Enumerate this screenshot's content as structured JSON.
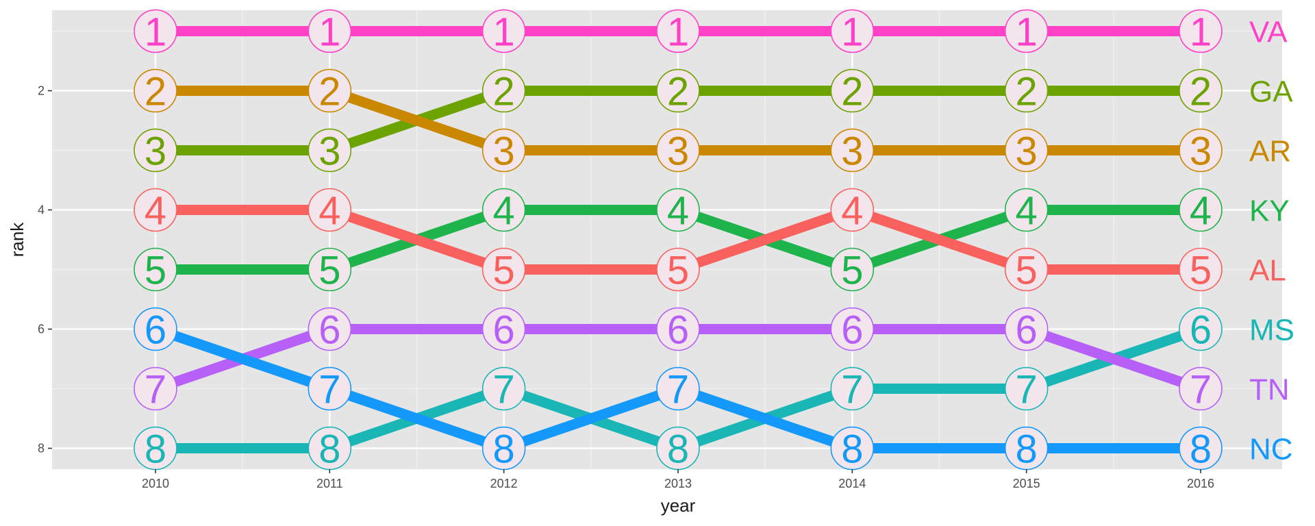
{
  "chart_data": {
    "type": "line",
    "xlabel": "year",
    "ylabel": "rank",
    "x": [
      2010,
      2011,
      2012,
      2013,
      2014,
      2015,
      2016
    ],
    "x_tick_labels": [
      "2010",
      "2011",
      "2012",
      "2013",
      "2014",
      "2015",
      "2016"
    ],
    "y_tick_labels": [
      "2",
      "4",
      "6",
      "8"
    ],
    "y_ticks": [
      2,
      4,
      6,
      8
    ],
    "ylim": [
      8.35,
      0.65
    ],
    "y_reversed": true,
    "grid": true,
    "legend": "none",
    "series": [
      {
        "name": "VA",
        "color": "#FF41C8",
        "ranks": [
          1,
          1,
          1,
          1,
          1,
          1,
          1
        ]
      },
      {
        "name": "GA",
        "color": "#6DA300",
        "ranks": [
          3,
          3,
          2,
          2,
          2,
          2,
          2
        ]
      },
      {
        "name": "AR",
        "color": "#C98800",
        "ranks": [
          2,
          2,
          3,
          3,
          3,
          3,
          3
        ]
      },
      {
        "name": "KY",
        "color": "#1EB44B",
        "ranks": [
          5,
          5,
          4,
          4,
          5,
          4,
          4
        ]
      },
      {
        "name": "AL",
        "color": "#F8615E",
        "ranks": [
          4,
          4,
          5,
          5,
          4,
          5,
          5
        ]
      },
      {
        "name": "MS",
        "color": "#1AB6B6",
        "ranks": [
          8,
          8,
          7,
          8,
          7,
          7,
          6
        ]
      },
      {
        "name": "TN",
        "color": "#B660F7",
        "ranks": [
          7,
          6,
          6,
          6,
          6,
          6,
          7
        ]
      },
      {
        "name": "NC",
        "color": "#1499FA",
        "ranks": [
          6,
          7,
          8,
          7,
          8,
          8,
          8
        ]
      }
    ]
  }
}
